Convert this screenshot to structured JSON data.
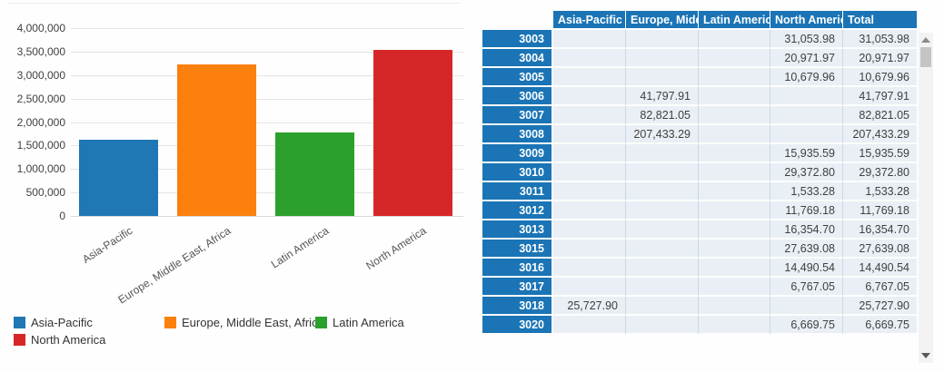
{
  "chart_data": {
    "type": "bar",
    "title": "",
    "xlabel": "",
    "ylabel": "",
    "categories": [
      "Asia-Pacific",
      "Europe, Middle East, Africa",
      "Latin America",
      "North America"
    ],
    "values": [
      1620000,
      3220000,
      1780000,
      3530000
    ],
    "colors": [
      "#1f77b4",
      "#fb800e",
      "#2ca02c",
      "#d62728"
    ],
    "ylim": [
      0,
      4000000
    ],
    "y_tick_labels": [
      "4,000,000",
      "3,500,000",
      "3,000,000",
      "2,500,000",
      "2,000,000",
      "1,500,000",
      "1,000,000",
      "500,000",
      "0"
    ],
    "grid": true,
    "legend_position": "bottom",
    "legend": [
      "Asia-Pacific",
      "Europe, Middle East, Africa",
      "Latin America",
      "North America"
    ]
  },
  "table": {
    "columns": [
      "Asia-Pacific",
      "Europe, Middle East, Africa",
      "Latin America",
      "North America",
      "Total"
    ],
    "rows": [
      {
        "id": "3003",
        "cells": [
          "",
          "",
          "",
          "31,053.98",
          "31,053.98"
        ]
      },
      {
        "id": "3004",
        "cells": [
          "",
          "",
          "",
          "20,971.97",
          "20,971.97"
        ]
      },
      {
        "id": "3005",
        "cells": [
          "",
          "",
          "",
          "10,679.96",
          "10,679.96"
        ]
      },
      {
        "id": "3006",
        "cells": [
          "",
          "41,797.91",
          "",
          "",
          "41,797.91"
        ]
      },
      {
        "id": "3007",
        "cells": [
          "",
          "82,821.05",
          "",
          "",
          "82,821.05"
        ]
      },
      {
        "id": "3008",
        "cells": [
          "",
          "207,433.29",
          "",
          "",
          "207,433.29"
        ]
      },
      {
        "id": "3009",
        "cells": [
          "",
          "",
          "",
          "15,935.59",
          "15,935.59"
        ]
      },
      {
        "id": "3010",
        "cells": [
          "",
          "",
          "",
          "29,372.80",
          "29,372.80"
        ]
      },
      {
        "id": "3011",
        "cells": [
          "",
          "",
          "",
          "1,533.28",
          "1,533.28"
        ]
      },
      {
        "id": "3012",
        "cells": [
          "",
          "",
          "",
          "11,769.18",
          "11,769.18"
        ]
      },
      {
        "id": "3013",
        "cells": [
          "",
          "",
          "",
          "16,354.70",
          "16,354.70"
        ]
      },
      {
        "id": "3015",
        "cells": [
          "",
          "",
          "",
          "27,639.08",
          "27,639.08"
        ]
      },
      {
        "id": "3016",
        "cells": [
          "",
          "",
          "",
          "14,490.54",
          "14,490.54"
        ]
      },
      {
        "id": "3017",
        "cells": [
          "",
          "",
          "",
          "6,767.05",
          "6,767.05"
        ]
      },
      {
        "id": "3018",
        "cells": [
          "25,727.90",
          "",
          "",
          "",
          "25,727.90"
        ]
      },
      {
        "id": "3020",
        "cells": [
          "",
          "",
          "",
          "6,669.75",
          "6,669.75"
        ]
      }
    ]
  }
}
